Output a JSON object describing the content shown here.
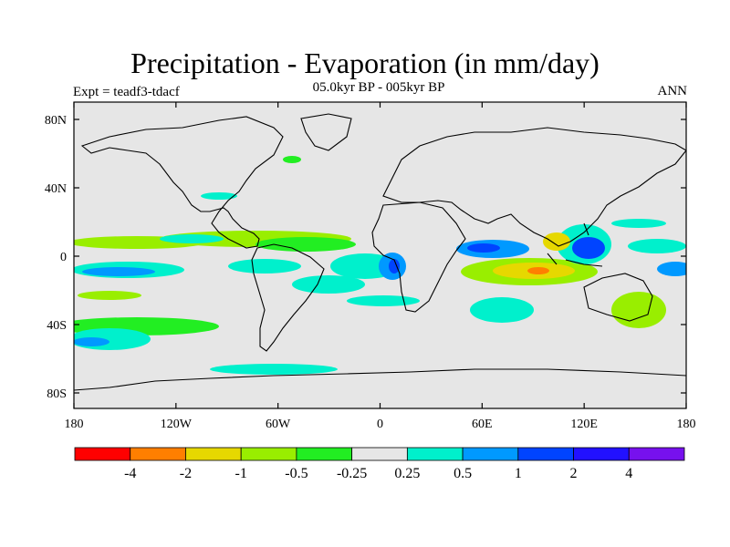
{
  "header": {
    "title": "Precipitation - Evaporation (in mm/day)",
    "subtitle": "05.0kyr BP - 005kyr BP",
    "left_label": "Expt = teadf3-tdacf",
    "right_label": "ANN"
  },
  "map": {
    "background_color": "#e6e6e6",
    "x_ticks": [
      {
        "lon": -180,
        "label": "180"
      },
      {
        "lon": -120,
        "label": "120W"
      },
      {
        "lon": -60,
        "label": "60W"
      },
      {
        "lon": 0,
        "label": "0"
      },
      {
        "lon": 60,
        "label": "60E"
      },
      {
        "lon": 120,
        "label": "120E"
      },
      {
        "lon": 180,
        "label": "180"
      }
    ],
    "y_ticks": [
      {
        "lat": 80,
        "label": "80N"
      },
      {
        "lat": 40,
        "label": "40N"
      },
      {
        "lat": 0,
        "label": "0"
      },
      {
        "lat": -40,
        "label": "40S"
      },
      {
        "lat": -80,
        "label": "80S"
      }
    ]
  },
  "colorbar": {
    "colors": [
      "#ff0000",
      "#ff7f00",
      "#e6d800",
      "#99ee00",
      "#22ee22",
      "#e6e6e6",
      "#00f0cc",
      "#0099ff",
      "#0044ff",
      "#2211ff",
      "#7711ee"
    ],
    "labels": [
      "-4",
      "-2",
      "-1",
      "-0.5",
      "-0.25",
      "0.25",
      "0.5",
      "1",
      "2",
      "4"
    ]
  }
}
